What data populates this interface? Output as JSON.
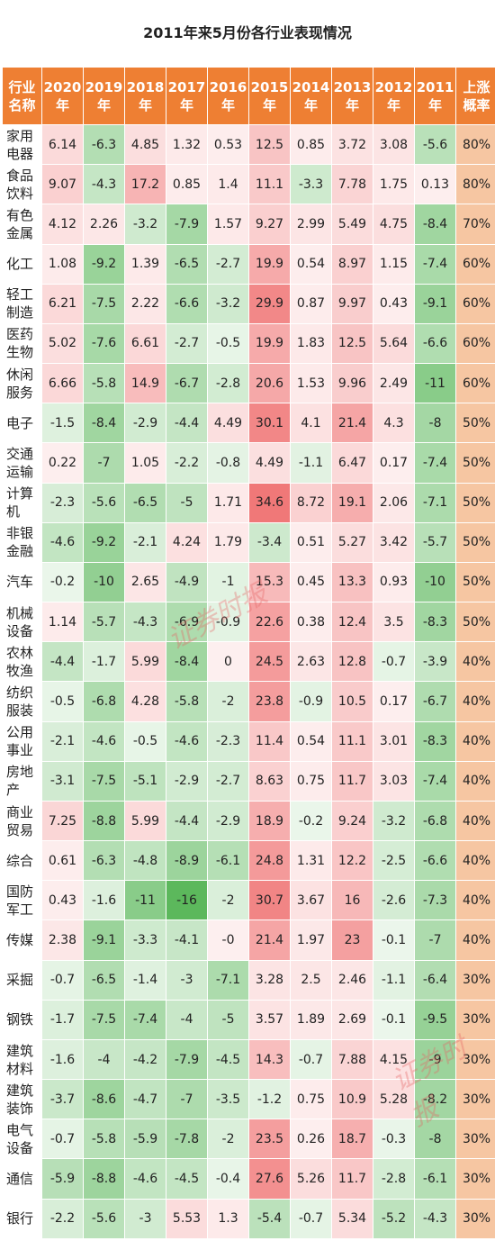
{
  "title": "2011年来5月份各行业表现情况",
  "header": {
    "industry": [
      "行业",
      "名称"
    ],
    "years": [
      [
        "2020",
        "年"
      ],
      [
        "2019",
        "年"
      ],
      [
        "2018",
        "年"
      ],
      [
        "2017",
        "年"
      ],
      [
        "2016",
        "年"
      ],
      [
        "2015",
        "年"
      ],
      [
        "2014",
        "年"
      ],
      [
        "2013",
        "年"
      ],
      [
        "2012",
        "年"
      ],
      [
        "2011",
        "年"
      ]
    ],
    "prob": [
      "上涨",
      "概率"
    ]
  },
  "rows": [
    {
      "name": [
        "家用",
        "电器"
      ],
      "values": [
        "6.14",
        "-6.3",
        "4.85",
        "1.32",
        "0.53",
        "12.5",
        "0.85",
        "3.72",
        "3.08",
        "-5.6"
      ],
      "prob": "80%"
    },
    {
      "name": [
        "食品",
        "饮料"
      ],
      "values": [
        "9.07",
        "-4.3",
        "17.2",
        "0.85",
        "1.4",
        "11.1",
        "-3.3",
        "7.78",
        "1.75",
        "0.13"
      ],
      "prob": "80%"
    },
    {
      "name": [
        "有色",
        "金属"
      ],
      "values": [
        "4.12",
        "2.26",
        "-3.2",
        "-7.9",
        "1.57",
        "9.27",
        "2.99",
        "5.49",
        "4.75",
        "-8.4"
      ],
      "prob": "70%"
    },
    {
      "name": [
        "化工"
      ],
      "values": [
        "1.08",
        "-9.2",
        "1.39",
        "-6.5",
        "-2.7",
        "19.9",
        "0.54",
        "8.97",
        "1.15",
        "-7.4"
      ],
      "prob": "60%"
    },
    {
      "name": [
        "轻工",
        "制造"
      ],
      "values": [
        "6.21",
        "-7.5",
        "2.22",
        "-6.6",
        "-3.2",
        "29.9",
        "0.87",
        "9.97",
        "0.43",
        "-9.1"
      ],
      "prob": "60%"
    },
    {
      "name": [
        "医药",
        "生物"
      ],
      "values": [
        "5.02",
        "-7.6",
        "6.61",
        "-2.7",
        "-0.5",
        "19.9",
        "1.83",
        "12.5",
        "5.64",
        "-6.6"
      ],
      "prob": "60%"
    },
    {
      "name": [
        "休闲",
        "服务"
      ],
      "values": [
        "6.66",
        "-5.8",
        "14.9",
        "-6.7",
        "-2.8",
        "20.6",
        "1.53",
        "9.96",
        "2.49",
        "-11"
      ],
      "prob": "60%"
    },
    {
      "name": [
        "电子"
      ],
      "values": [
        "-1.5",
        "-8.4",
        "-2.9",
        "-4.4",
        "4.49",
        "30.1",
        "4.1",
        "21.4",
        "4.3",
        "-8"
      ],
      "prob": "50%"
    },
    {
      "name": [
        "交通",
        "运输"
      ],
      "values": [
        "0.22",
        "-7",
        "1.05",
        "-2.2",
        "-0.8",
        "4.49",
        "-1.1",
        "6.47",
        "0.17",
        "-7.4"
      ],
      "prob": "50%"
    },
    {
      "name": [
        "计算",
        "机"
      ],
      "values": [
        "-2.3",
        "-5.6",
        "-6.5",
        "-5",
        "1.71",
        "34.6",
        "8.72",
        "19.1",
        "2.06",
        "-7.1"
      ],
      "prob": "50%"
    },
    {
      "name": [
        "非银",
        "金融"
      ],
      "values": [
        "-4.6",
        "-9.2",
        "-2.1",
        "4.24",
        "1.79",
        "-3.4",
        "0.51",
        "5.27",
        "3.42",
        "-5.7"
      ],
      "prob": "50%"
    },
    {
      "name": [
        "汽车"
      ],
      "values": [
        "-0.2",
        "-10",
        "2.65",
        "-4.9",
        "-1",
        "15.3",
        "0.45",
        "13.3",
        "0.93",
        "-10"
      ],
      "prob": "50%"
    },
    {
      "name": [
        "机械",
        "设备"
      ],
      "values": [
        "1.14",
        "-5.7",
        "-4.3",
        "-6.9",
        "-0.9",
        "22.6",
        "0.38",
        "12.4",
        "3.5",
        "-8.3"
      ],
      "prob": "50%"
    },
    {
      "name": [
        "农林",
        "牧渔"
      ],
      "values": [
        "-4.4",
        "-1.7",
        "5.99",
        "-8.4",
        "0",
        "24.5",
        "2.63",
        "12.8",
        "-0.7",
        "-3.9"
      ],
      "prob": "40%"
    },
    {
      "name": [
        "纺织",
        "服装"
      ],
      "values": [
        "-0.5",
        "-6.8",
        "4.28",
        "-5.8",
        "-2",
        "23.8",
        "-0.9",
        "10.5",
        "0.17",
        "-6.7"
      ],
      "prob": "40%"
    },
    {
      "name": [
        "公用",
        "事业"
      ],
      "values": [
        "-2.1",
        "-4.6",
        "-0.5",
        "-4.6",
        "-2.3",
        "11.4",
        "0.54",
        "11.1",
        "3.01",
        "-8.3"
      ],
      "prob": "40%"
    },
    {
      "name": [
        "房地",
        "产"
      ],
      "values": [
        "-3.1",
        "-7.5",
        "-5.1",
        "-2.9",
        "-2.7",
        "8.63",
        "0.75",
        "11.7",
        "3.03",
        "-7.4"
      ],
      "prob": "40%"
    },
    {
      "name": [
        "商业",
        "贸易"
      ],
      "values": [
        "7.25",
        "-8.8",
        "5.99",
        "-4.4",
        "-2.9",
        "18.9",
        "-0.2",
        "9.24",
        "-3.2",
        "-6.8"
      ],
      "prob": "40%"
    },
    {
      "name": [
        "综合"
      ],
      "values": [
        "0.61",
        "-6.3",
        "-4.8",
        "-8.9",
        "-6.1",
        "24.8",
        "1.31",
        "12.2",
        "-2.5",
        "-6.6"
      ],
      "prob": "40%"
    },
    {
      "name": [
        "国防",
        "军工"
      ],
      "values": [
        "0.43",
        "-1.6",
        "-11",
        "-16",
        "-2",
        "30.7",
        "3.67",
        "16",
        "-2.6",
        "-7.3"
      ],
      "prob": "40%"
    },
    {
      "name": [
        "传媒"
      ],
      "values": [
        "2.38",
        "-9.1",
        "-3.3",
        "-4.1",
        "-0",
        "21.4",
        "1.97",
        "23",
        "-0.1",
        "-7"
      ],
      "prob": "40%"
    },
    {
      "name": [
        "采掘"
      ],
      "values": [
        "-0.7",
        "-6.5",
        "-1.4",
        "-3",
        "-7.1",
        "3.28",
        "2.5",
        "2.46",
        "-1.1",
        "-6.4"
      ],
      "prob": "30%"
    },
    {
      "name": [
        "钢铁"
      ],
      "values": [
        "-1.7",
        "-7.5",
        "-7.4",
        "-4",
        "-5",
        "3.57",
        "1.89",
        "2.69",
        "-0.1",
        "-9.5"
      ],
      "prob": "30%"
    },
    {
      "name": [
        "建筑",
        "材料"
      ],
      "values": [
        "-1.6",
        "-4",
        "-4.2",
        "-7.9",
        "-4.5",
        "14.3",
        "-0.7",
        "7.88",
        "4.15",
        "-9"
      ],
      "prob": "30%"
    },
    {
      "name": [
        "建筑",
        "装饰"
      ],
      "values": [
        "-3.7",
        "-8.6",
        "-4.7",
        "-7",
        "-3.5",
        "-1.2",
        "0.75",
        "10.9",
        "5.28",
        "-8.2"
      ],
      "prob": "30%"
    },
    {
      "name": [
        "电气",
        "设备"
      ],
      "values": [
        "-0.7",
        "-5.8",
        "-5.9",
        "-7.8",
        "-2",
        "23.5",
        "0.26",
        "18.7",
        "-0.3",
        "-8"
      ],
      "prob": "30%"
    },
    {
      "name": [
        "通信"
      ],
      "values": [
        "-5.9",
        "-8.8",
        "-4.6",
        "-4.5",
        "-0.4",
        "27.6",
        "5.26",
        "11.7",
        "-2.8",
        "-6.1"
      ],
      "prob": "30%"
    },
    {
      "name": [
        "银行"
      ],
      "values": [
        "-2.2",
        "-5.6",
        "-3",
        "5.53",
        "1.3",
        "-5.4",
        "-0.7",
        "5.34",
        "-5.2",
        "-4.3"
      ],
      "prob": "30%"
    }
  ],
  "colors": {
    "header_bg": "#ee7f33",
    "positive_max": "#f07878",
    "negative_max": "#5cb85c",
    "prob_bg": "#f6c6a2"
  },
  "watermark": "证券时报"
}
